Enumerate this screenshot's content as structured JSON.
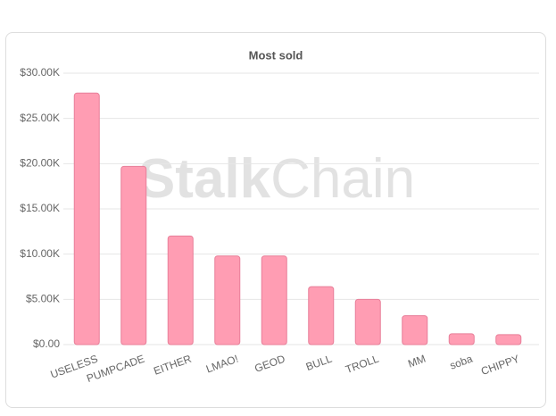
{
  "chart_data": {
    "type": "bar",
    "title": "Most sold",
    "watermark": [
      "Stalk",
      "Chain"
    ],
    "categories": [
      "USELESS",
      "PUMPCADE",
      "EITHER",
      "LMAO!",
      "GEOD",
      "BULL",
      "TROLL",
      "MM",
      "soba",
      "CHIPPY"
    ],
    "values": [
      27800,
      19700,
      12000,
      9800,
      9800,
      6400,
      5000,
      3200,
      1200,
      1100
    ],
    "color": "#ff9db3",
    "ylim": [
      0,
      30000
    ],
    "yticks": [
      {
        "value": 0,
        "label": "$0.00"
      },
      {
        "value": 5000,
        "label": "$5.00K"
      },
      {
        "value": 10000,
        "label": "$10.00K"
      },
      {
        "value": 15000,
        "label": "$15.00K"
      },
      {
        "value": 20000,
        "label": "$20.00K"
      },
      {
        "value": 25000,
        "label": "$25.00K"
      },
      {
        "value": 30000,
        "label": "$30.00K"
      }
    ],
    "grid": true
  }
}
